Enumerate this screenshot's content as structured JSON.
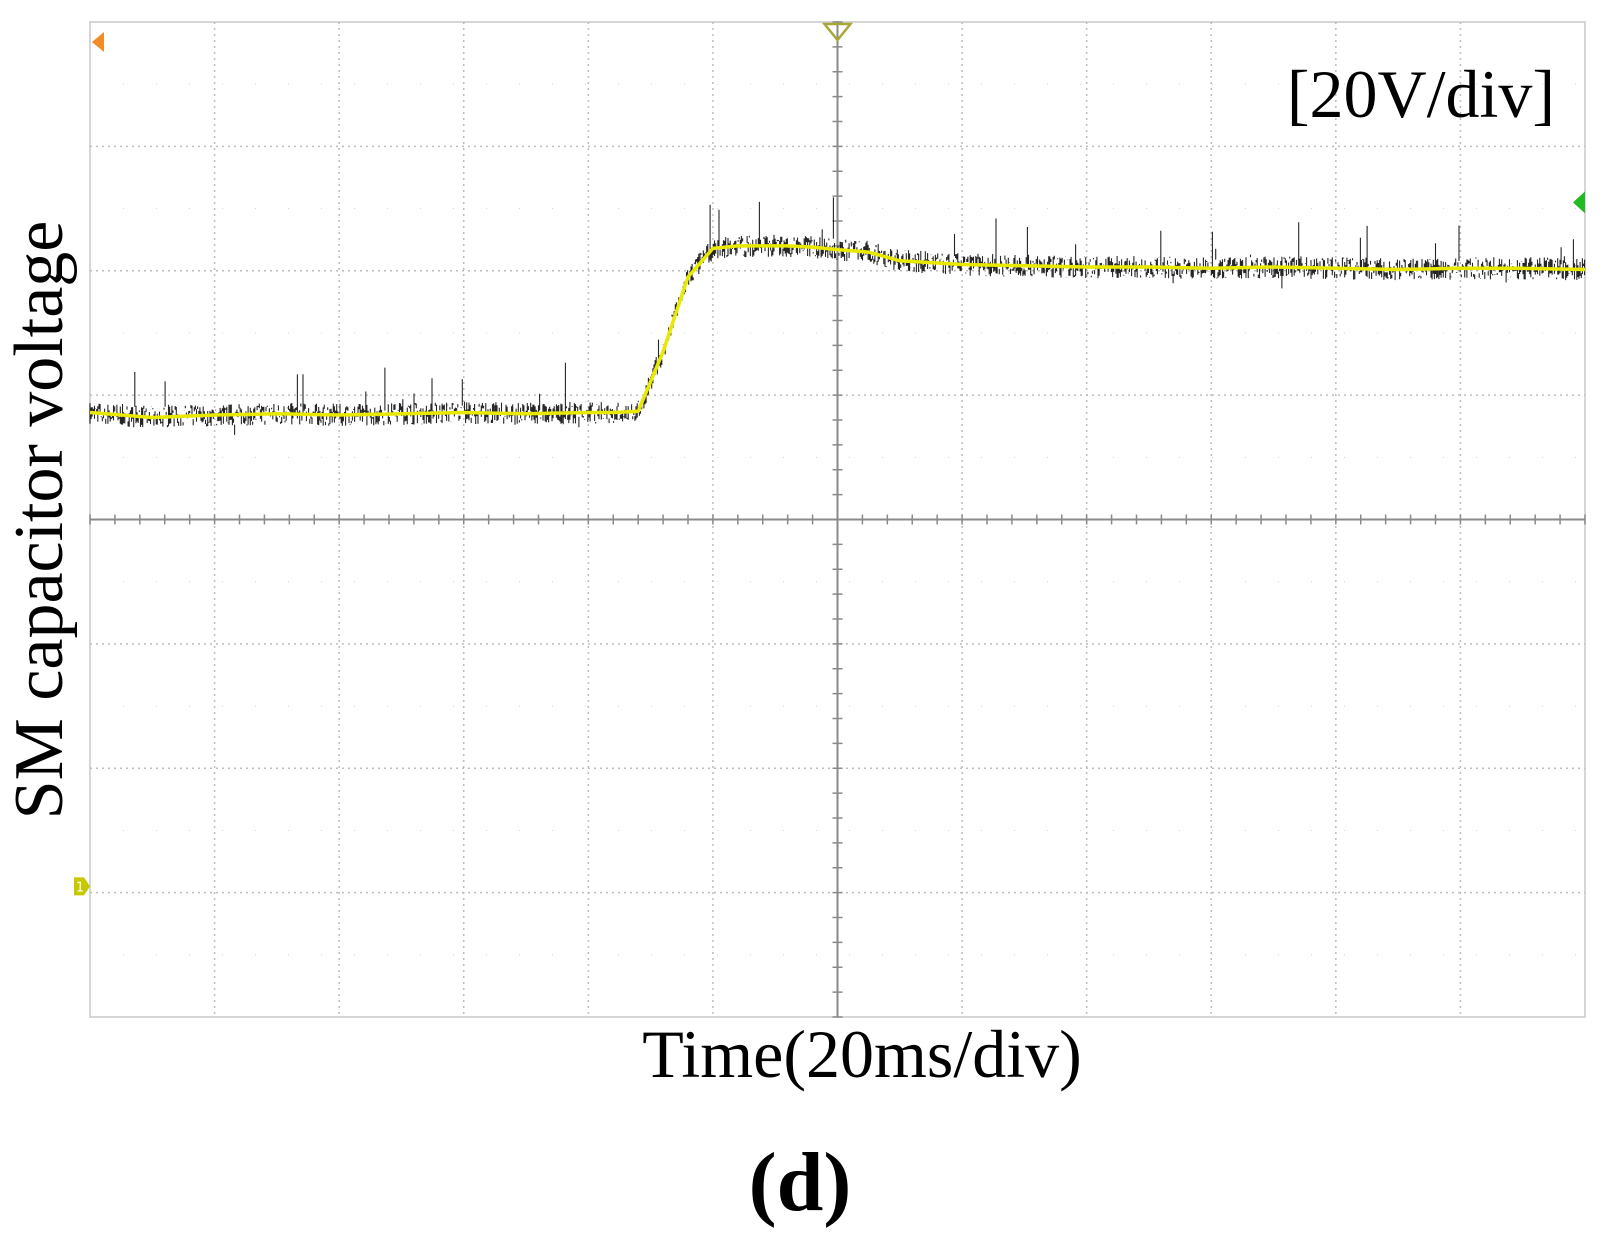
{
  "chart_data": {
    "type": "line",
    "title": "",
    "subtitle": "",
    "ylabel": "SM capacitor voltage",
    "xlabel": "Time(20ms/div)",
    "scale_label": "[20V/div]",
    "panel_label": "(d)",
    "xlim": [
      0,
      240
    ],
    "ylim": [
      -4,
      4
    ],
    "grid": true,
    "x_divisions": 12,
    "y_divisions": 8,
    "series": [
      {
        "color": "#e8e800",
        "noise_color": "#000000",
        "x": [
          0,
          10,
          20,
          30,
          40,
          50,
          60,
          70,
          80,
          84,
          88,
          92,
          96,
          100,
          104,
          108,
          112,
          116,
          120,
          125,
          130,
          140,
          150,
          160,
          170,
          180,
          190,
          200,
          210,
          220,
          230,
          240
        ],
        "y": [
          0.86,
          0.82,
          0.84,
          0.85,
          0.84,
          0.85,
          0.86,
          0.85,
          0.86,
          0.86,
          0.87,
          1.35,
          1.95,
          2.18,
          2.2,
          2.2,
          2.2,
          2.19,
          2.17,
          2.15,
          2.08,
          2.05,
          2.04,
          2.03,
          2.03,
          2.02,
          2.03,
          2.02,
          2.01,
          2.02,
          2.02,
          2.01
        ]
      }
    ]
  },
  "markers": {
    "ref_marker_color": "#f28c28",
    "trigger_marker_color": "#a8a83a",
    "trigger_level_color": "#22bb22",
    "channel_marker_color": "#c8c800",
    "channel_marker_label": "1"
  }
}
